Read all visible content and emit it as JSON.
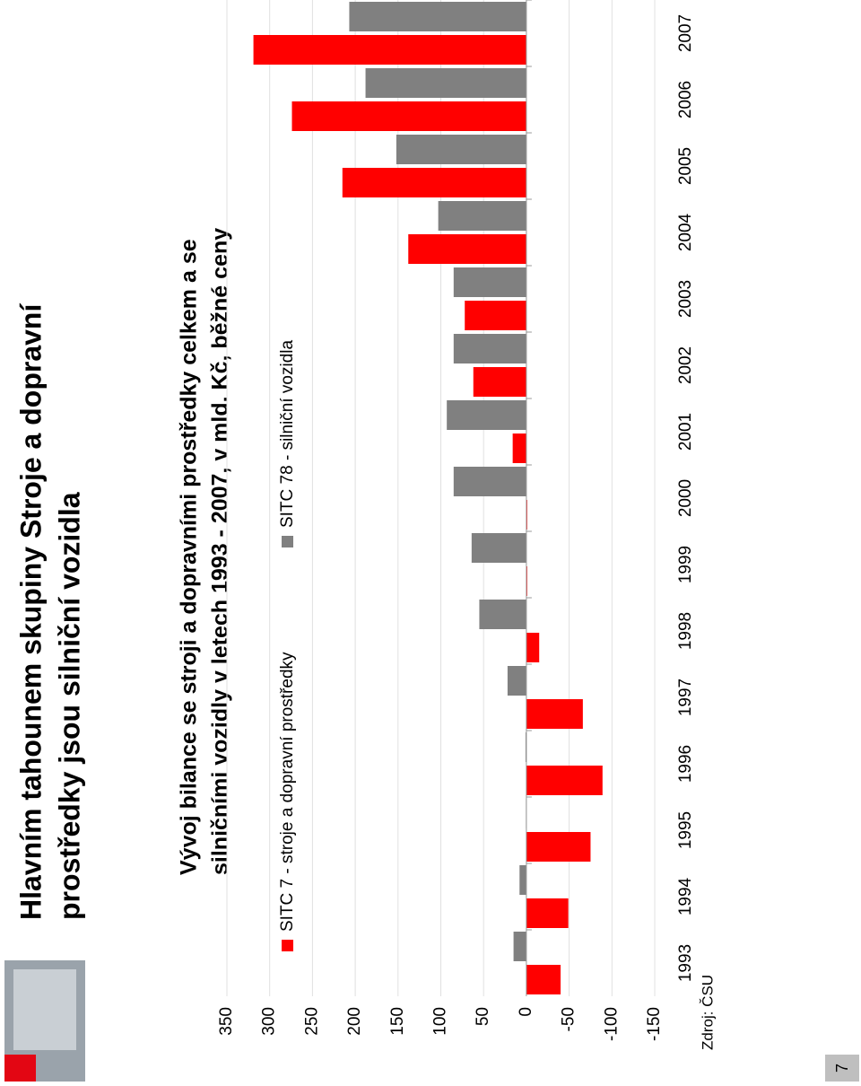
{
  "slide": {
    "title_lines": [
      "Hlavním tahounem skupiny Stroje a dopravní",
      "prostředky jsou silniční vozidla"
    ],
    "page_number": "7"
  },
  "chart_data": {
    "type": "bar",
    "title_lines": [
      "Vývoj bilance se stroji a dopravními prostředky celkem a se",
      "silničními vozidly v letech 1993 - 2007, v mld. Kč, běžné ceny"
    ],
    "categories": [
      "1993",
      "1994",
      "1995",
      "1996",
      "1997",
      "1998",
      "1999",
      "2000",
      "2001",
      "2002",
      "2003",
      "2004",
      "2005",
      "2006",
      "2007"
    ],
    "series": [
      {
        "name": "SITC 7 - stroje a dopravní prostředky",
        "color": "#ff0000",
        "values": [
          -40,
          -49,
          -75,
          -89,
          -66,
          -15,
          -1,
          -1,
          16,
          62,
          72,
          138,
          215,
          274,
          319
        ]
      },
      {
        "name": "SITC 78 - silniční vozidla",
        "color": "#808080",
        "values": [
          15,
          8,
          0.5,
          1,
          22,
          55,
          64,
          85,
          93,
          85,
          85,
          103,
          152,
          188,
          207
        ]
      }
    ],
    "ylim": [
      -150,
      350
    ],
    "yticks": [
      -150,
      -100,
      -50,
      0,
      50,
      100,
      150,
      200,
      250,
      300,
      350
    ],
    "grid": true,
    "source": "Zdroj: ČSU"
  }
}
